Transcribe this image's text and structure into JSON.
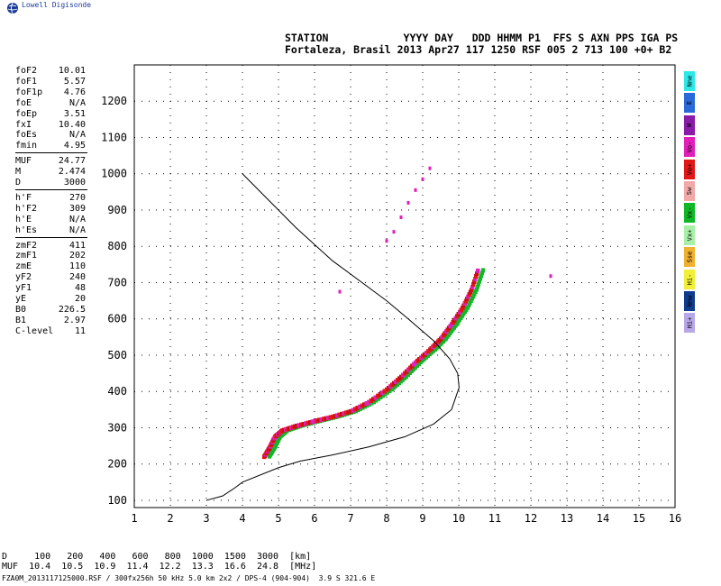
{
  "logo": {
    "text": "Lowell Digisonde",
    "icon": "globe-icon"
  },
  "header": {
    "line1": "STATION            YYYY DAY   DDD HHMM P1  FFS S AXN PPS IGA PS",
    "line2": "Fortaleza, Brasil 2013 Apr27 117 1250 RSF 005 2 713 100 +0+ B2"
  },
  "params": [
    {
      "key": "foF2",
      "value": "10.01"
    },
    {
      "key": "foF1",
      "value": "5.57"
    },
    {
      "key": "foF1p",
      "value": "4.76"
    },
    {
      "key": "foE",
      "value": "N/A"
    },
    {
      "key": "foEp",
      "value": "3.51"
    },
    {
      "key": "fxI",
      "value": "10.40"
    },
    {
      "key": "foEs",
      "value": "N/A"
    },
    {
      "key": "fmin",
      "value": "4.95"
    },
    {
      "key": "MUF",
      "value": "24.77"
    },
    {
      "key": "M",
      "value": "2.474"
    },
    {
      "key": "D",
      "value": "3000"
    },
    {
      "key": "h'F",
      "value": "270"
    },
    {
      "key": "h'F2",
      "value": "309"
    },
    {
      "key": "h'E",
      "value": "N/A"
    },
    {
      "key": "h'Es",
      "value": "N/A"
    },
    {
      "key": "zmF2",
      "value": "411"
    },
    {
      "key": "zmF1",
      "value": "202"
    },
    {
      "key": "zmE",
      "value": "110"
    },
    {
      "key": "yF2",
      "value": "240"
    },
    {
      "key": "yF1",
      "value": "48"
    },
    {
      "key": "yE",
      "value": "20"
    },
    {
      "key": "B0",
      "value": "226.5"
    },
    {
      "key": "B1",
      "value": "2.97"
    },
    {
      "key": "C-level",
      "value": "11"
    }
  ],
  "legend": [
    {
      "label": "Nne",
      "color": "#2ee8e8"
    },
    {
      "label": "E",
      "color": "#2a6ad8"
    },
    {
      "label": "W",
      "color": "#8a1aa8"
    },
    {
      "label": "Vo-",
      "color": "#e020b8"
    },
    {
      "label": "Vo+",
      "color": "#e01818"
    },
    {
      "label": "Sw",
      "color": "#f0a8a8"
    },
    {
      "label": "Vx-",
      "color": "#10b828"
    },
    {
      "label": "Vx+",
      "color": "#a8f0a8"
    },
    {
      "label": "Sse",
      "color": "#f0b030"
    },
    {
      "label": "Hi-",
      "color": "#f0f038"
    },
    {
      "label": "Nnw",
      "color": "#103c90"
    },
    {
      "label": "Hi+",
      "color": "#b8a8e8"
    }
  ],
  "bottom": {
    "d_row": "D     100   200   400   600   800  1000  1500  3000  [km]",
    "muf_row": "MUF  10.4  10.5  10.9  11.4  12.2  13.3  16.6  24.8  [MHz]",
    "file_row": "FZA0M_2013117125000.RSF / 300fx256h 50 kHz 5.0 km 2x2 / DPS-4 (904-904)  3.9 S 321.6 E"
  },
  "chart_data": {
    "type": "scatter",
    "xlim": [
      1,
      16
    ],
    "ylim": [
      80,
      1300
    ],
    "xticks": [
      1,
      2,
      3,
      4,
      5,
      6,
      7,
      8,
      9,
      10,
      11,
      12,
      13,
      14,
      15,
      16
    ],
    "yticks": [
      100,
      200,
      300,
      400,
      500,
      600,
      700,
      800,
      900,
      1000,
      1100,
      1200
    ],
    "grid": true,
    "profile": [
      [
        3.0,
        100
      ],
      [
        3.45,
        112
      ],
      [
        3.8,
        135
      ],
      [
        4.0,
        150
      ],
      [
        5.0,
        190
      ],
      [
        5.6,
        208
      ],
      [
        6.5,
        225
      ],
      [
        7.5,
        247
      ],
      [
        8.5,
        275
      ],
      [
        9.3,
        310
      ],
      [
        9.8,
        350
      ],
      [
        10.01,
        411
      ],
      [
        9.97,
        450
      ],
      [
        9.75,
        490
      ],
      [
        9.3,
        540
      ],
      [
        8.6,
        600
      ],
      [
        8.0,
        650
      ],
      [
        6.5,
        760
      ],
      [
        5.5,
        850
      ],
      [
        4.5,
        950
      ],
      [
        4.0,
        1000
      ]
    ],
    "echo_o": [
      [
        4.6,
        220
      ],
      [
        4.75,
        245
      ],
      [
        4.9,
        275
      ],
      [
        5.1,
        292
      ],
      [
        5.5,
        305
      ],
      [
        6.0,
        318
      ],
      [
        6.5,
        330
      ],
      [
        7.0,
        345
      ],
      [
        7.5,
        370
      ],
      [
        8.0,
        405
      ],
      [
        8.4,
        440
      ],
      [
        8.8,
        480
      ],
      [
        9.2,
        515
      ],
      [
        9.5,
        545
      ],
      [
        9.8,
        585
      ],
      [
        10.1,
        630
      ],
      [
        10.35,
        680
      ],
      [
        10.55,
        740
      ]
    ],
    "echo_x_offset": 0.15,
    "echo_extra": [
      [
        6.7,
        675
      ],
      [
        8.0,
        815
      ],
      [
        8.2,
        840
      ],
      [
        8.4,
        880
      ],
      [
        8.6,
        920
      ],
      [
        8.8,
        955
      ],
      [
        9.0,
        985
      ],
      [
        9.2,
        1015
      ],
      [
        12.55,
        718
      ]
    ]
  }
}
